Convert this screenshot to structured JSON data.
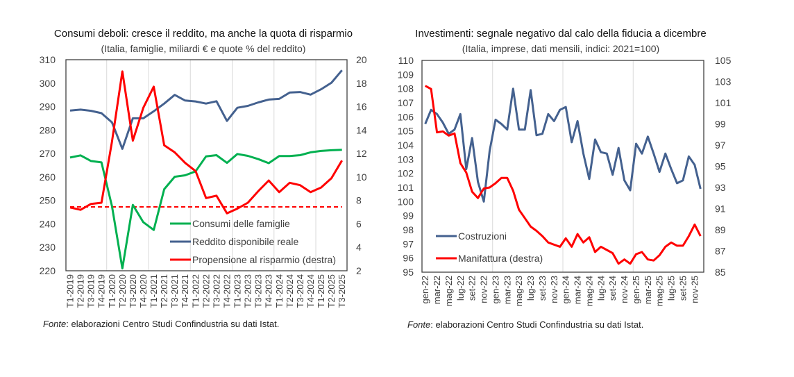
{
  "chart_data": [
    {
      "type": "line",
      "title": "Consumi deboli: cresce il reddito, ma anche la quota di risparmio",
      "subtitle": "(Italia, famiglie, miliardi € e quote % del reddito)",
      "categories": [
        "T1-2019",
        "T2-2019",
        "T3-2019",
        "T4-2019",
        "T1-2020",
        "T2-2020",
        "T3-2020",
        "T4-2020",
        "T1-2021",
        "T2-2021",
        "T3-2021",
        "T4-2021",
        "T1-2022",
        "T2-2022",
        "T3-2022",
        "T4-2022",
        "T1-2023",
        "T2-2023",
        "T3-2023",
        "T4-2023",
        "T1-2024",
        "T2-2024",
        "T3-2024",
        "T4-2024",
        "T1-2025",
        "T2-2025",
        "T3-2025"
      ],
      "ylim": [
        220,
        310
      ],
      "yticks": [
        220,
        230,
        240,
        250,
        260,
        270,
        280,
        290,
        300,
        310
      ],
      "y2lim": [
        2,
        20
      ],
      "y2ticks": [
        2,
        4,
        6,
        8,
        10,
        12,
        14,
        16,
        18,
        20
      ],
      "grid": "vertical, yearly",
      "legend_position": "bottom-right",
      "series": [
        {
          "name": "Consumi delle famiglie",
          "axis": "left",
          "color": "#00B050",
          "values": [
            268.3,
            269.2,
            266.8,
            266.2,
            247.6,
            221.0,
            248.1,
            240.7,
            237.4,
            254.8,
            260.1,
            260.7,
            262.4,
            268.8,
            269.3,
            266.0,
            269.8,
            269.0,
            267.6,
            265.9,
            268.9,
            268.9,
            269.3,
            270.5,
            271.1,
            271.4,
            271.6
          ]
        },
        {
          "name": "Reddito disponibile reale",
          "axis": "left",
          "color": "#44618F",
          "values": [
            288.3,
            288.7,
            288.2,
            287.2,
            283.3,
            272.0,
            285.0,
            285.0,
            288.0,
            291.3,
            295.0,
            292.6,
            292.2,
            291.3,
            292.3,
            283.9,
            289.5,
            290.3,
            291.8,
            293.0,
            293.3,
            296.0,
            296.2,
            295.1,
            297.4,
            300.2,
            305.5
          ]
        },
        {
          "name": "Propensione al risparmio (destra)",
          "axis": "right",
          "color": "#FF0000",
          "values": [
            7.4,
            7.2,
            7.7,
            7.8,
            13.0,
            19.0,
            13.1,
            15.9,
            17.7,
            12.7,
            12.1,
            11.2,
            10.5,
            8.2,
            8.4,
            6.9,
            7.3,
            7.8,
            8.8,
            9.7,
            8.7,
            9.5,
            9.3,
            8.7,
            9.1,
            9.9,
            11.4
          ]
        }
      ],
      "reference_line": {
        "axis": "right",
        "value": 7.45,
        "color": "#FF0000",
        "style": "dashed"
      },
      "source_label": "Fonte",
      "source_text": ": elaborazioni Centro Studi Confindustria su dati Istat."
    },
    {
      "type": "line",
      "title": "Investimenti: segnale negativo dal calo della fiducia a dicembre",
      "subtitle": "(Italia, imprese, dati mensili, indici: 2021=100)",
      "categories": [
        "gen-22",
        "feb-22",
        "mar-22",
        "apr-22",
        "mag-22",
        "giu-22",
        "lug-22",
        "ago-22",
        "set-22",
        "ott-22",
        "nov-22",
        "dic-22",
        "gen-23",
        "feb-23",
        "mar-23",
        "apr-23",
        "mag-23",
        "giu-23",
        "lug-23",
        "ago-23",
        "set-23",
        "ott-23",
        "nov-23",
        "dic-23",
        "gen-24",
        "feb-24",
        "mar-24",
        "apr-24",
        "mag-24",
        "giu-24",
        "lug-24",
        "ago-24",
        "set-24",
        "ott-24",
        "nov-24",
        "dic-24",
        "gen-25",
        "feb-25",
        "mar-25",
        "apr-25",
        "mag-25",
        "giu-25",
        "lug-25",
        "ago-25",
        "set-25",
        "ott-25",
        "nov-25",
        "dic-25"
      ],
      "xtick_labels": [
        "gen-22",
        "mar-22",
        "mag-22",
        "lug-22",
        "set-22",
        "nov-22",
        "gen-23",
        "mar-23",
        "mag-23",
        "lug-23",
        "set-23",
        "nov-23",
        "gen-24",
        "mar-24",
        "mag-24",
        "lug-24",
        "set-24",
        "nov-24",
        "gen-25",
        "mar-25",
        "mag-25",
        "lug-25",
        "set-25",
        "nov-25"
      ],
      "ylim": [
        95,
        110
      ],
      "yticks": [
        95,
        96,
        97,
        98,
        99,
        100,
        101,
        102,
        103,
        104,
        105,
        106,
        107,
        108,
        109,
        110
      ],
      "y2lim": [
        85,
        105
      ],
      "y2ticks": [
        85,
        87,
        89,
        91,
        93,
        95,
        97,
        99,
        101,
        103,
        105
      ],
      "grid": "vertical, yearly",
      "legend_position": "bottom-left",
      "series": [
        {
          "name": "Costruzioni",
          "axis": "left",
          "color": "#44618F",
          "values": [
            105.5,
            106.5,
            106.2,
            105.6,
            104.8,
            105.1,
            106.2,
            102.3,
            104.5,
            101.4,
            100.0,
            103.6,
            105.8,
            105.5,
            105.1,
            108.0,
            105.1,
            105.1,
            107.9,
            104.7,
            104.8,
            106.2,
            105.7,
            106.5,
            106.7,
            104.2,
            105.7,
            103.4,
            101.6,
            104.4,
            103.5,
            103.4,
            101.9,
            103.8,
            101.5,
            100.8,
            104.1,
            103.4,
            104.6,
            103.4,
            102.1,
            103.4,
            102.3,
            101.3,
            101.5,
            103.2,
            102.6,
            100.9
          ]
        },
        {
          "name": "Manifattura (destra)",
          "axis": "right",
          "color": "#FF0000",
          "values": [
            102.6,
            102.3,
            98.2,
            98.3,
            97.9,
            98.1,
            95.3,
            94.4,
            92.6,
            92.0,
            92.9,
            93.0,
            93.4,
            93.9,
            93.9,
            92.7,
            90.9,
            90.1,
            89.3,
            88.9,
            88.4,
            87.8,
            87.6,
            87.4,
            88.2,
            87.4,
            88.6,
            87.8,
            88.3,
            86.9,
            87.4,
            87.1,
            86.8,
            85.8,
            86.2,
            85.8,
            86.7,
            86.9,
            86.2,
            86.1,
            86.6,
            87.4,
            87.8,
            87.5,
            87.5,
            88.4,
            89.5,
            88.4
          ]
        }
      ],
      "source_label": "Fonte",
      "source_text": ": elaborazioni Centro Studi Confindustria su dati Istat."
    }
  ]
}
